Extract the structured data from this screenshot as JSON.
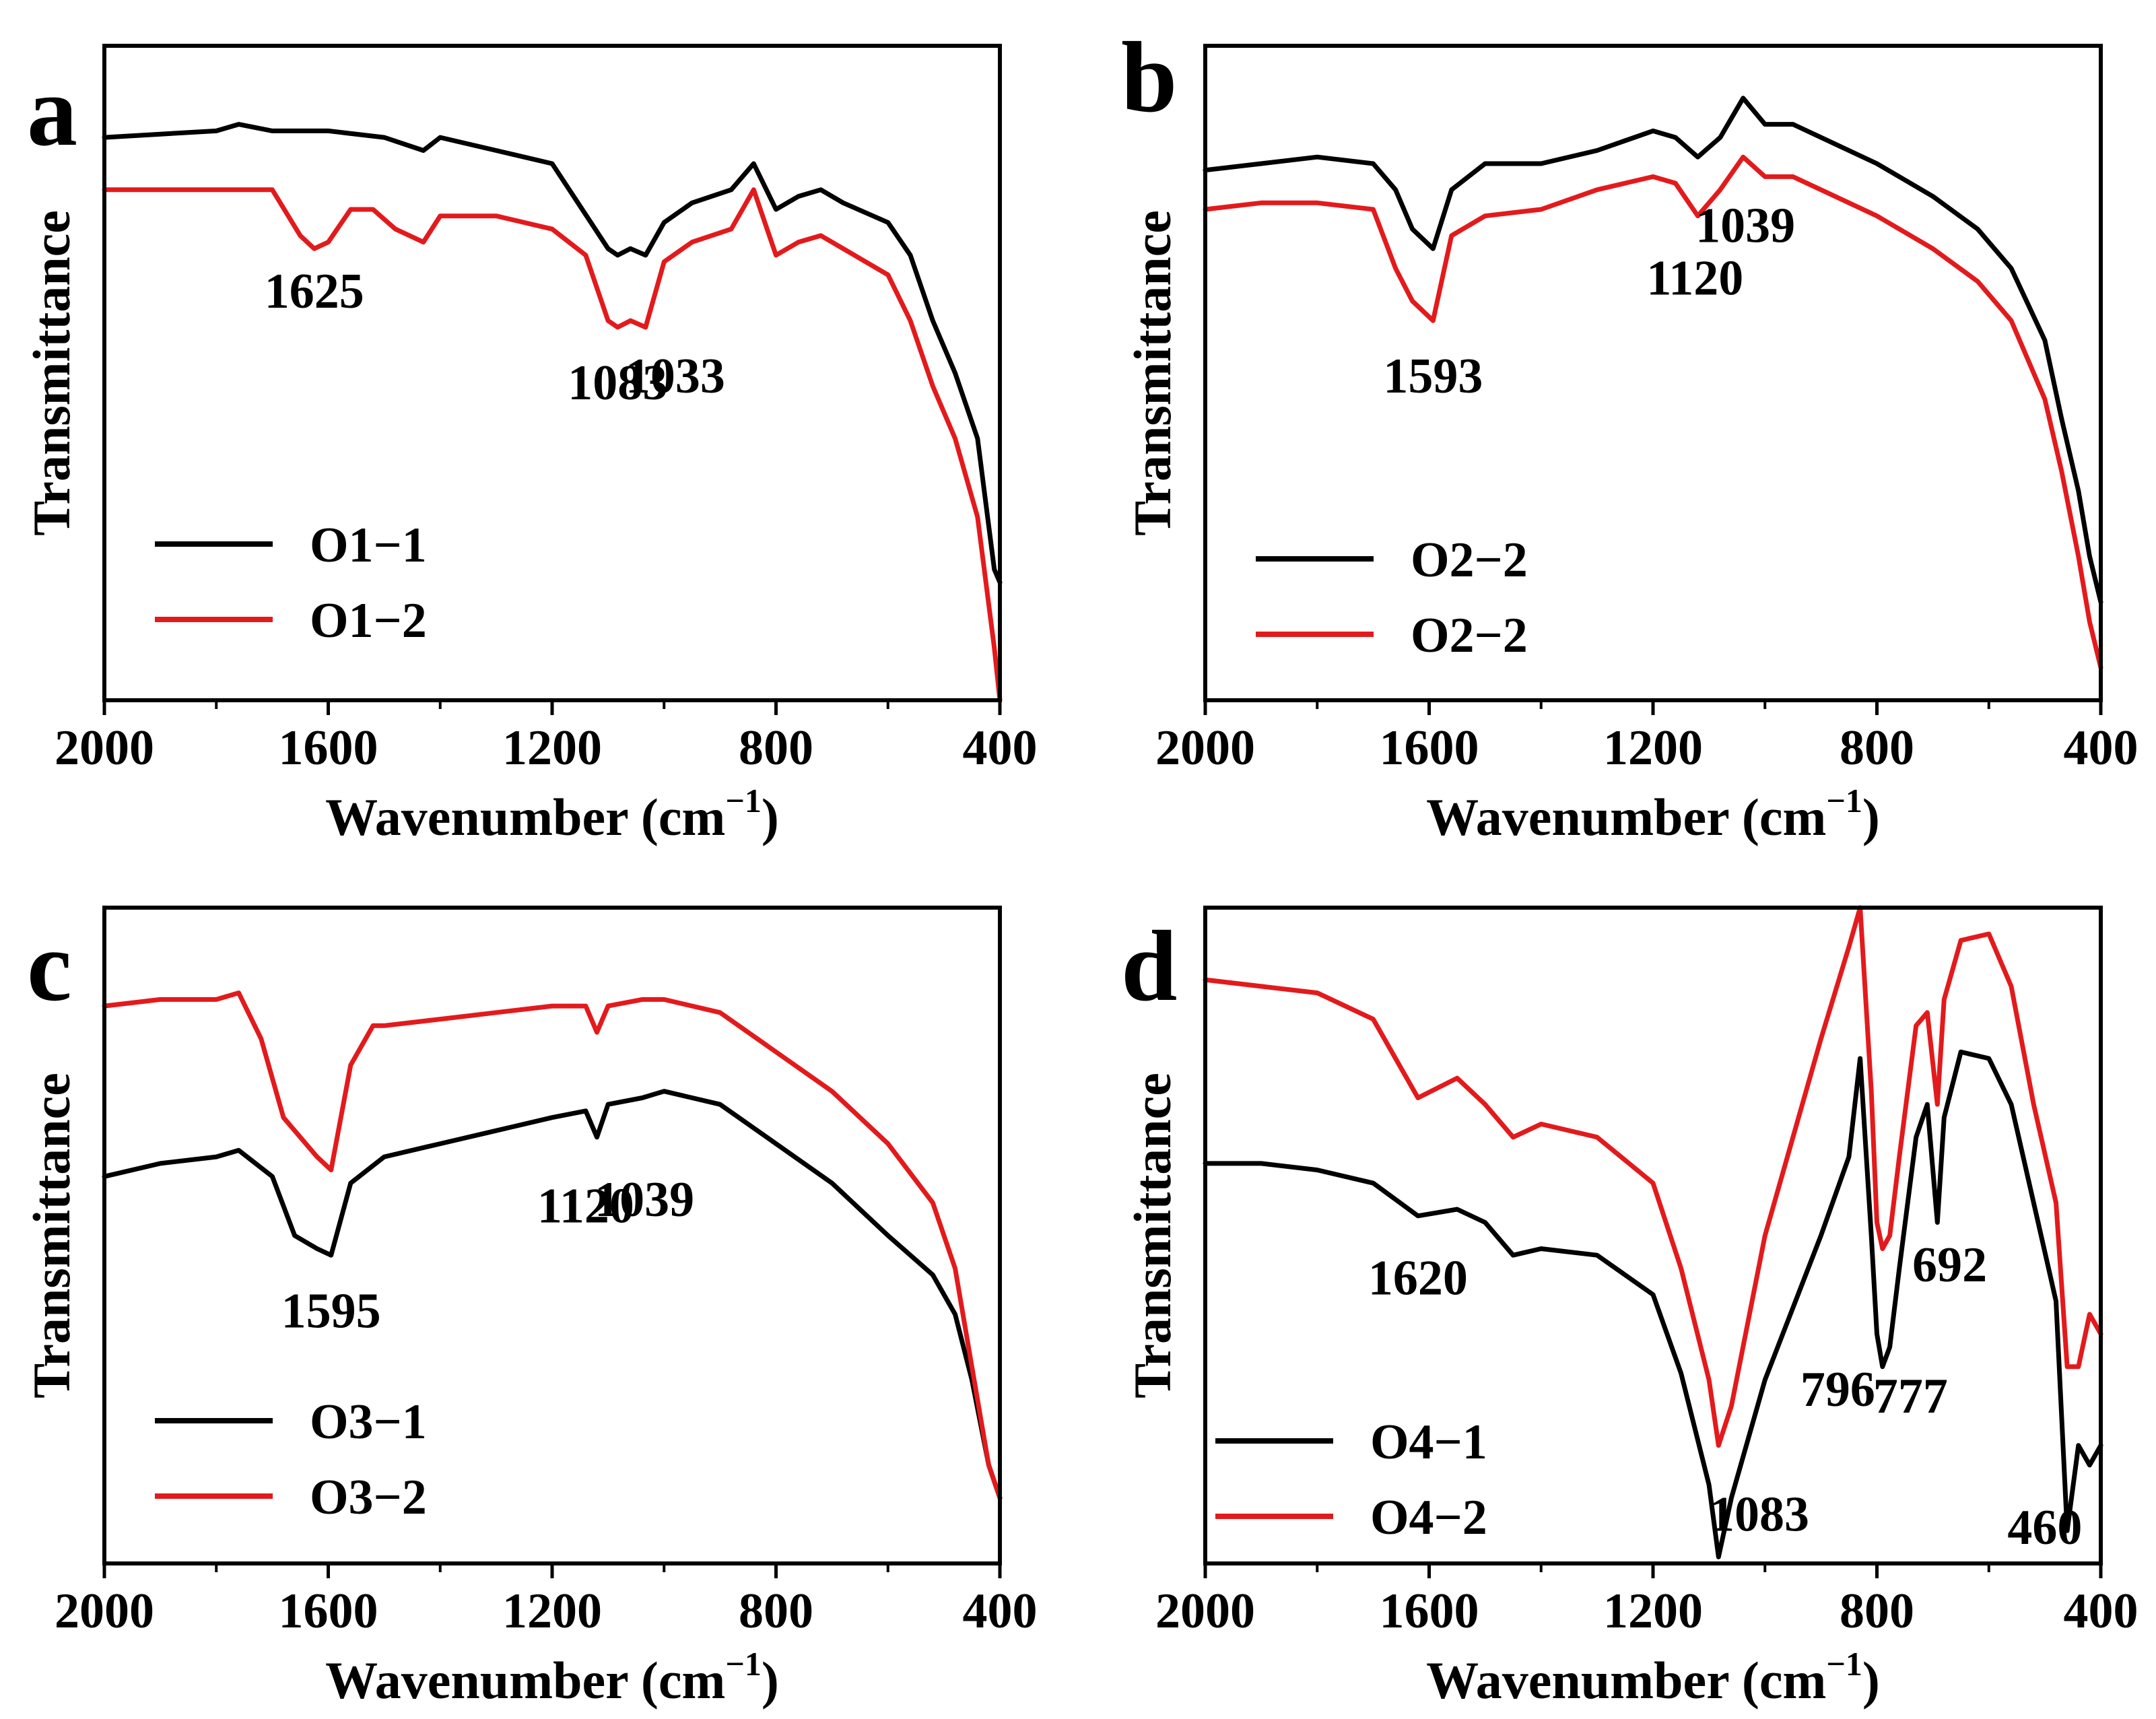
{
  "series_colors": {
    "first": "#000000",
    "second": "#e31a1c"
  },
  "chart_data": [
    {
      "type": "line",
      "panel": "a",
      "xlabel": "Wavenumber (cm",
      "xlabel_sup": "−1",
      "xlabel_close": ")",
      "ylabel": "Transmittance",
      "xlim": [
        2000,
        400
      ],
      "ylim": [
        0,
        100
      ],
      "xticks": [
        "2000",
        "1600",
        "1200",
        "800",
        "400"
      ],
      "xtick_values": [
        2000,
        1600,
        1200,
        800,
        400
      ],
      "legend_position": "bottom-left",
      "series": [
        {
          "name": "O1−1",
          "color": "#000000",
          "x": [
            2000,
            1900,
            1800,
            1760,
            1700,
            1600,
            1500,
            1430,
            1400,
            1300,
            1200,
            1100,
            1083,
            1060,
            1033,
            1000,
            950,
            880,
            840,
            800,
            760,
            720,
            680,
            600,
            560,
            520,
            480,
            440,
            410,
            400
          ],
          "y": [
            86,
            86.5,
            87,
            88,
            87,
            87,
            86,
            84,
            86,
            84,
            82,
            69,
            68,
            69,
            68,
            73,
            76,
            78,
            82,
            75,
            77,
            78,
            76,
            73,
            68,
            58,
            50,
            40,
            20,
            18
          ]
        },
        {
          "name": "O1−2",
          "color": "#e31a1c",
          "x": [
            2000,
            1900,
            1800,
            1700,
            1650,
            1625,
            1600,
            1560,
            1520,
            1480,
            1430,
            1400,
            1300,
            1200,
            1140,
            1100,
            1083,
            1060,
            1033,
            1000,
            950,
            880,
            840,
            800,
            760,
            720,
            680,
            600,
            560,
            520,
            480,
            440,
            410,
            400
          ],
          "y": [
            78,
            78,
            78,
            78,
            71,
            69,
            70,
            75,
            75,
            72,
            70,
            74,
            74,
            72,
            68,
            58,
            57,
            58,
            57,
            67,
            70,
            72,
            78,
            68,
            70,
            71,
            69,
            65,
            58,
            48,
            40,
            28,
            8,
            0
          ]
        }
      ],
      "annotations": [
        {
          "text": "1625",
          "x": 1625,
          "y": 60
        },
        {
          "text": "1083",
          "x": 1083,
          "y": 46
        },
        {
          "text": "1033",
          "x": 980,
          "y": 47
        }
      ]
    },
    {
      "type": "line",
      "panel": "b",
      "xlabel": "Wavenumber (cm",
      "xlabel_sup": "−1",
      "xlabel_close": ")",
      "ylabel": "Transmittance",
      "xlim": [
        2000,
        400
      ],
      "ylim": [
        0,
        100
      ],
      "xticks": [
        "2000",
        "1600",
        "1200",
        "800",
        "400"
      ],
      "xtick_values": [
        2000,
        1600,
        1200,
        800,
        400
      ],
      "legend_position": "bottom-left",
      "series": [
        {
          "name": "O2−2",
          "color": "#000000",
          "x": [
            2000,
            1900,
            1800,
            1700,
            1660,
            1630,
            1593,
            1560,
            1500,
            1400,
            1300,
            1200,
            1160,
            1120,
            1080,
            1039,
            1000,
            950,
            900,
            800,
            700,
            620,
            560,
            500,
            470,
            440,
            420,
            400
          ],
          "y": [
            81,
            82,
            83,
            82,
            78,
            72,
            69,
            78,
            82,
            82,
            84,
            87,
            86,
            83,
            86,
            92,
            88,
            88,
            86,
            82,
            77,
            72,
            66,
            55,
            43,
            32,
            22,
            15
          ]
        },
        {
          "name": "O2−2",
          "color": "#e31a1c",
          "x": [
            2000,
            1900,
            1800,
            1700,
            1660,
            1630,
            1593,
            1560,
            1500,
            1400,
            1300,
            1200,
            1160,
            1120,
            1080,
            1039,
            1000,
            950,
            900,
            800,
            700,
            620,
            560,
            500,
            470,
            440,
            420,
            400
          ],
          "y": [
            75,
            76,
            76,
            75,
            66,
            61,
            58,
            71,
            74,
            75,
            78,
            80,
            79,
            74,
            78,
            83,
            80,
            80,
            78,
            74,
            69,
            64,
            58,
            46,
            35,
            22,
            12,
            5
          ]
        }
      ],
      "annotations": [
        {
          "text": "1593",
          "x": 1593,
          "y": 47
        },
        {
          "text": "1120",
          "x": 1125,
          "y": 62
        },
        {
          "text": "1039",
          "x": 1035,
          "y": 70
        }
      ]
    },
    {
      "type": "line",
      "panel": "c",
      "xlabel": "Wavenumber (cm",
      "xlabel_sup": "−1",
      "xlabel_close": ")",
      "ylabel": "Transmittance",
      "xlim": [
        2000,
        400
      ],
      "ylim": [
        0,
        100
      ],
      "xticks": [
        "2000",
        "1600",
        "1200",
        "800",
        "400"
      ],
      "xtick_values": [
        2000,
        1600,
        1200,
        800,
        400
      ],
      "legend_position": "bottom-left",
      "series": [
        {
          "name": "O3−1",
          "color": "#000000",
          "x": [
            2000,
            1900,
            1800,
            1760,
            1700,
            1660,
            1620,
            1595,
            1560,
            1500,
            1400,
            1300,
            1200,
            1140,
            1120,
            1100,
            1039,
            1000,
            900,
            800,
            700,
            600,
            520,
            480,
            450,
            420,
            400
          ],
          "y": [
            59,
            61,
            62,
            63,
            59,
            50,
            48,
            47,
            58,
            62,
            64,
            66,
            68,
            69,
            65,
            70,
            71,
            72,
            70,
            64,
            58,
            50,
            44,
            38,
            28,
            15,
            10
          ]
        },
        {
          "name": "O3−2",
          "color": "#e31a1c",
          "x": [
            2000,
            1900,
            1800,
            1760,
            1720,
            1680,
            1620,
            1595,
            1560,
            1520,
            1500,
            1400,
            1300,
            1200,
            1140,
            1120,
            1100,
            1039,
            1000,
            900,
            800,
            700,
            600,
            520,
            480,
            450,
            420,
            400
          ],
          "y": [
            85,
            86,
            86,
            87,
            80,
            68,
            62,
            60,
            76,
            82,
            82,
            83,
            84,
            85,
            85,
            81,
            85,
            86,
            86,
            84,
            78,
            72,
            64,
            55,
            45,
            30,
            15,
            10
          ]
        }
      ],
      "annotations": [
        {
          "text": "1595",
          "x": 1595,
          "y": 36
        },
        {
          "text": "1120",
          "x": 1140,
          "y": 52
        },
        {
          "text": "1039",
          "x": 1035,
          "y": 53
        }
      ]
    },
    {
      "type": "line",
      "panel": "d",
      "xlabel": "Wavenumber (cm",
      "xlabel_sup": "−1",
      "xlabel_close": ")",
      "ylabel": "Transmittance",
      "xlim": [
        2000,
        400
      ],
      "ylim": [
        0,
        100
      ],
      "xticks": [
        "2000",
        "1600",
        "1200",
        "800",
        "400"
      ],
      "xtick_values": [
        2000,
        1600,
        1200,
        800,
        400
      ],
      "legend_position": "bottom-left",
      "series": [
        {
          "name": "O4−1",
          "color": "#000000",
          "x": [
            2000,
            1900,
            1800,
            1700,
            1620,
            1550,
            1500,
            1450,
            1400,
            1300,
            1200,
            1150,
            1100,
            1083,
            1060,
            1000,
            900,
            850,
            830,
            810,
            800,
            790,
            777,
            760,
            730,
            710,
            692,
            680,
            650,
            600,
            560,
            520,
            480,
            460,
            440,
            420,
            400
          ],
          "y": [
            61,
            61,
            60,
            58,
            53,
            54,
            52,
            47,
            48,
            47,
            41,
            29,
            12,
            1,
            10,
            28,
            50,
            62,
            77,
            50,
            35,
            30,
            33,
            45,
            65,
            70,
            52,
            68,
            78,
            77,
            70,
            55,
            40,
            5,
            18,
            15,
            18
          ]
        },
        {
          "name": "O4−2",
          "color": "#e31a1c",
          "x": [
            2000,
            1900,
            1800,
            1700,
            1620,
            1550,
            1500,
            1450,
            1400,
            1300,
            1200,
            1150,
            1100,
            1083,
            1060,
            1000,
            900,
            850,
            830,
            810,
            800,
            790,
            777,
            760,
            730,
            710,
            692,
            680,
            650,
            600,
            560,
            520,
            480,
            460,
            440,
            420,
            400
          ],
          "y": [
            89,
            88,
            87,
            83,
            71,
            74,
            70,
            65,
            67,
            65,
            58,
            45,
            28,
            18,
            24,
            50,
            80,
            94,
            100,
            72,
            52,
            48,
            50,
            62,
            82,
            84,
            70,
            86,
            95,
            96,
            88,
            70,
            55,
            30,
            30,
            38,
            35
          ]
        }
      ],
      "annotations": [
        {
          "text": "1620",
          "x": 1620,
          "y": 41
        },
        {
          "text": "796",
          "x": 870,
          "y": 24
        },
        {
          "text": "777",
          "x": 740,
          "y": 23
        },
        {
          "text": "692",
          "x": 670,
          "y": 43
        },
        {
          "text": "1083",
          "x": 1010,
          "y": 5
        },
        {
          "text": "460",
          "x": 500,
          "y": 3
        }
      ]
    }
  ]
}
